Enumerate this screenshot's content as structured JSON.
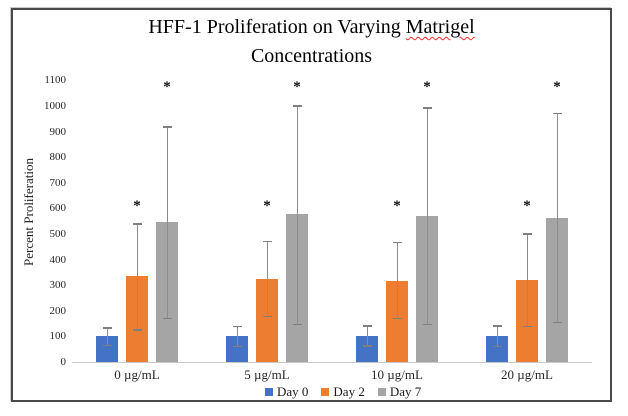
{
  "page": {
    "background": "#ffffff"
  },
  "title": {
    "line1_before": "HFF-1 Proliferation on Varying ",
    "line1_flagged": "Matrigel",
    "line2": "Concentrations",
    "spellcheck_underline_color": "#ff2a2a"
  },
  "chart_data": {
    "type": "bar",
    "title": "HFF-1 Proliferation on Varying Matrigel Concentrations",
    "xlabel": "",
    "ylabel": "Percent Proliferation",
    "ylim": [
      0,
      1100
    ],
    "ytick_step": 100,
    "grid": false,
    "legend_position": "bottom",
    "sig_symbol": "*",
    "categories": [
      "0 µg/mL",
      "5 µg/mL",
      "10 µg/mL",
      "20 µg/mL"
    ],
    "series": [
      {
        "name": "Day 0",
        "color": "#4472C4",
        "values": [
          100,
          100,
          100,
          100
        ],
        "err_low": [
          65,
          60,
          62,
          60
        ],
        "err_high": [
          133,
          138,
          140,
          140
        ],
        "sig_marker_y": null
      },
      {
        "name": "Day 2",
        "color": "#ED7D31",
        "values": [
          335,
          323,
          317,
          320
        ],
        "err_low": [
          125,
          177,
          170,
          138
        ],
        "err_high": [
          540,
          470,
          467,
          500
        ],
        "sig_marker_y": 615
      },
      {
        "name": "Day 7",
        "color": "#A5A5A5",
        "values": [
          545,
          577,
          570,
          561
        ],
        "err_low": [
          170,
          147,
          147,
          155
        ],
        "err_high": [
          918,
          1000,
          992,
          970
        ],
        "sig_marker_y": 1080
      }
    ],
    "error_bar_color": "#8c8c8c",
    "axis_line_color": "#c9c9c9"
  }
}
